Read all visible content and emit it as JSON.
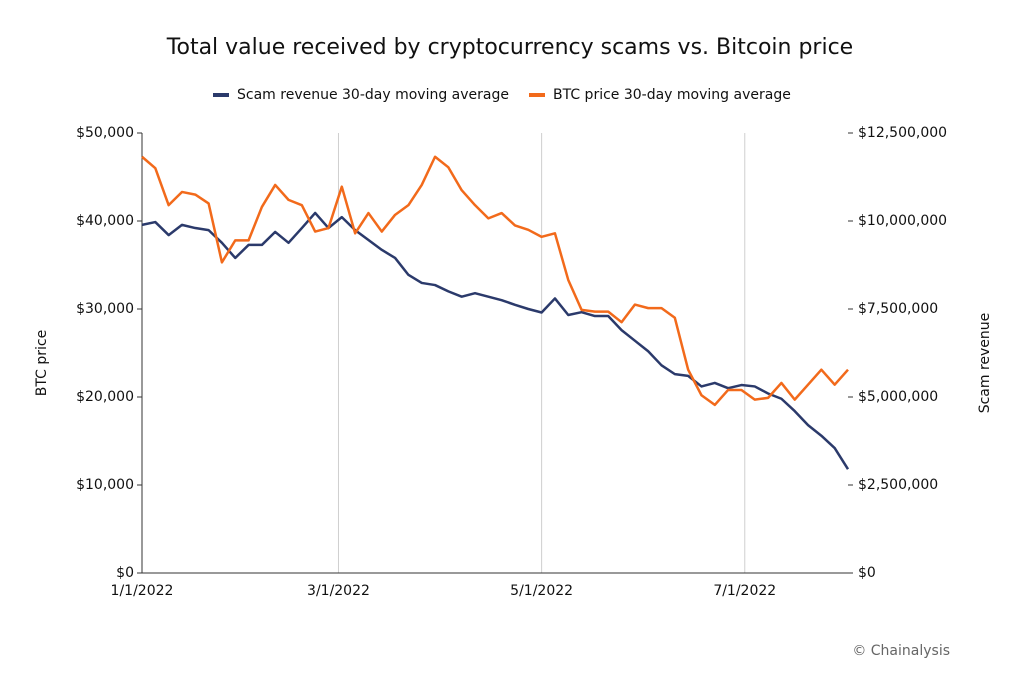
{
  "chart_data": {
    "type": "line",
    "title": "Total value received by cryptocurrency scams vs. Bitcoin price",
    "credit": "© Chainalysis",
    "y_label": "BTC price",
    "y2_label": "Scam revenue",
    "x": [
      "2022-01-01",
      "2022-01-05",
      "2022-01-09",
      "2022-01-13",
      "2022-01-17",
      "2022-01-21",
      "2022-01-25",
      "2022-01-29",
      "2022-02-02",
      "2022-02-06",
      "2022-02-10",
      "2022-02-14",
      "2022-02-18",
      "2022-02-22",
      "2022-02-26",
      "2022-03-02",
      "2022-03-06",
      "2022-03-10",
      "2022-03-14",
      "2022-03-18",
      "2022-03-22",
      "2022-03-26",
      "2022-03-30",
      "2022-04-03",
      "2022-04-07",
      "2022-04-11",
      "2022-04-15",
      "2022-04-19",
      "2022-04-23",
      "2022-04-27",
      "2022-05-01",
      "2022-05-05",
      "2022-05-09",
      "2022-05-13",
      "2022-05-17",
      "2022-05-21",
      "2022-05-25",
      "2022-05-29",
      "2022-06-02",
      "2022-06-06",
      "2022-06-10",
      "2022-06-14",
      "2022-06-18",
      "2022-06-22",
      "2022-06-26",
      "2022-06-30",
      "2022-07-04",
      "2022-07-08",
      "2022-07-12",
      "2022-07-16",
      "2022-07-20",
      "2022-07-24",
      "2022-07-28",
      "2022-08-01"
    ],
    "xlim": [
      "2022-01-01",
      "2022-08-01"
    ],
    "xticks": [
      {
        "value": "2022-01-01",
        "label": "1/1/2022"
      },
      {
        "value": "2022-03-01",
        "label": "3/1/2022"
      },
      {
        "value": "2022-05-01",
        "label": "5/1/2022"
      },
      {
        "value": "2022-07-01",
        "label": "7/1/2022"
      }
    ],
    "ylim": [
      0,
      50000
    ],
    "yticks": [
      {
        "value": 0,
        "label": "$0"
      },
      {
        "value": 10000,
        "label": "$10,000"
      },
      {
        "value": 20000,
        "label": "$20,000"
      },
      {
        "value": 30000,
        "label": "$30,000"
      },
      {
        "value": 40000,
        "label": "$40,000"
      },
      {
        "value": 50000,
        "label": "$50,000"
      }
    ],
    "y2lim": [
      0,
      12500000
    ],
    "y2ticks": [
      {
        "value": 0,
        "label": "$0"
      },
      {
        "value": 2500000,
        "label": "$2,500,000"
      },
      {
        "value": 5000000,
        "label": "$5,000,000"
      },
      {
        "value": 7500000,
        "label": "$7,500,000"
      },
      {
        "value": 10000000,
        "label": "$10,000,000"
      },
      {
        "value": 12500000,
        "label": "$12,500,000"
      }
    ],
    "grid": "x",
    "legend": "top",
    "series": [
      {
        "name": "Scam revenue 30-day moving average",
        "color": "#2b3a6b",
        "axis": "y2",
        "values": [
          9890000,
          9970000,
          9600000,
          9890000,
          9800000,
          9740000,
          9380000,
          8950000,
          9320000,
          9320000,
          9690000,
          9380000,
          9800000,
          10230000,
          9800000,
          10110000,
          9740000,
          9460000,
          9180000,
          8950000,
          8470000,
          8240000,
          8180000,
          8000000,
          7850000,
          7950000,
          7850000,
          7750000,
          7620000,
          7500000,
          7400000,
          7800000,
          7330000,
          7410000,
          7300000,
          7300000,
          6900000,
          6600000,
          6300000,
          5900000,
          5650000,
          5600000,
          5300000,
          5400000,
          5250000,
          5340000,
          5300000,
          5100000,
          4950000,
          4600000,
          4200000,
          3900000,
          3550000,
          2950000
        ]
      },
      {
        "name": "BTC price 30-day moving average",
        "color": "#f26a1b",
        "axis": "y",
        "values": [
          47300,
          46000,
          41800,
          43300,
          43000,
          42000,
          35300,
          37800,
          37800,
          41600,
          44100,
          42400,
          41800,
          38800,
          39200,
          43900,
          38600,
          40900,
          38800,
          40700,
          41800,
          44100,
          47300,
          46100,
          43500,
          41800,
          40300,
          40900,
          39500,
          39000,
          38200,
          38600,
          33300,
          29900,
          29700,
          29700,
          28500,
          30500,
          30100,
          30100,
          29000,
          23100,
          20200,
          19100,
          20800,
          20800,
          19700,
          19900,
          21600,
          19700,
          21400,
          23100,
          21400,
          23100
        ]
      }
    ]
  }
}
